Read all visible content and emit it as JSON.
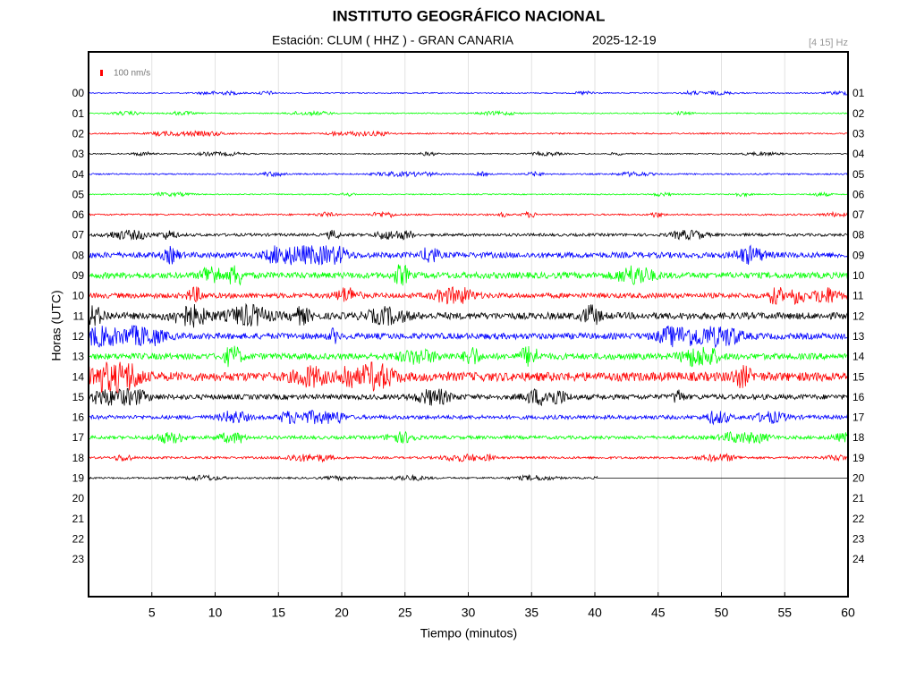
{
  "chart_data": {
    "type": "helicorder",
    "title": "INSTITUTO GEOGRÁFICO NACIONAL",
    "subtitle": "Estación:  CLUM ( HHZ ) - GRAN CANARIA",
    "date": "2025-12-19",
    "band": "[4 15] Hz",
    "scale_label": "100 nm/s",
    "xlabel": "Tiempo (minutos)",
    "ylabel": "Horas (UTC)",
    "xlim": [
      0,
      60
    ],
    "xticks": [
      5,
      10,
      15,
      20,
      25,
      30,
      35,
      40,
      45,
      50,
      55,
      60
    ],
    "grid": true,
    "hours_left": [
      "00",
      "01",
      "02",
      "03",
      "04",
      "05",
      "06",
      "07",
      "08",
      "09",
      "10",
      "11",
      "12",
      "13",
      "14",
      "15",
      "16",
      "17",
      "18",
      "19",
      "20",
      "21",
      "22",
      "23"
    ],
    "hours_right": [
      "01",
      "02",
      "03",
      "04",
      "05",
      "06",
      "07",
      "08",
      "09",
      "10",
      "11",
      "12",
      "13",
      "14",
      "15",
      "16",
      "17",
      "18",
      "19",
      "20",
      "21",
      "22",
      "23",
      "24"
    ],
    "traces": [
      {
        "color": "#0000ff",
        "amplitude": 20
      },
      {
        "color": "#00ff00",
        "amplitude": 20
      },
      {
        "color": "#ff0000",
        "amplitude": 25
      },
      {
        "color": "#000000",
        "amplitude": 20
      },
      {
        "color": "#0000ff",
        "amplitude": 25
      },
      {
        "color": "#00ff00",
        "amplitude": 20
      },
      {
        "color": "#ff0000",
        "amplitude": 30
      },
      {
        "color": "#000000",
        "amplitude": 50
      },
      {
        "color": "#0000ff",
        "amplitude": 100
      },
      {
        "color": "#00ff00",
        "amplitude": 110
      },
      {
        "color": "#ff0000",
        "amplitude": 90
      },
      {
        "color": "#000000",
        "amplitude": 120
      },
      {
        "color": "#0000ff",
        "amplitude": 110
      },
      {
        "color": "#00ff00",
        "amplitude": 110
      },
      {
        "color": "#ff0000",
        "amplitude": 160
      },
      {
        "color": "#000000",
        "amplitude": 90
      },
      {
        "color": "#0000ff",
        "amplitude": 70
      },
      {
        "color": "#00ff00",
        "amplitude": 60
      },
      {
        "color": "#ff0000",
        "amplitude": 40
      },
      {
        "color": "#000000",
        "amplitude": 30,
        "end": 40.2
      }
    ]
  }
}
